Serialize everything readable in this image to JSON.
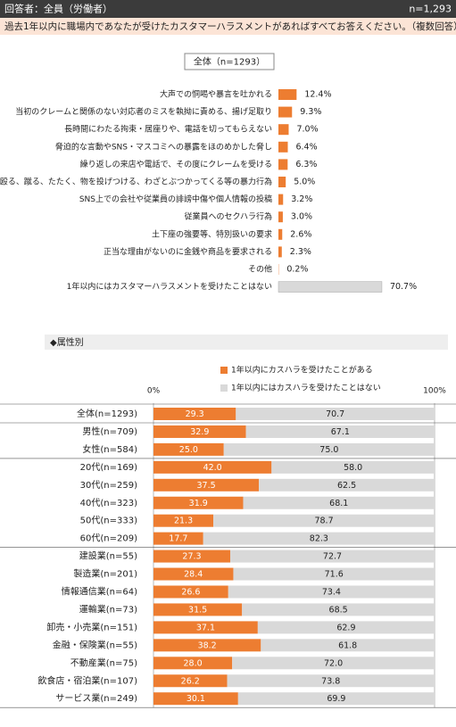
{
  "header": {
    "respondent": "回答者：全員（労働者）",
    "n": "n=1,293"
  },
  "question": "過去1年以内に職場内であなたが受けたカスタマーハラスメントがあればすべてお答えください。（複数回答）",
  "chart_data": [
    {
      "type": "bar",
      "title": "全体（n=1293）",
      "categories": [
        "大声での恫喝や暴言を吐かれる",
        "当初のクレームと関係のない対応者のミスを執拗に責める、揚げ足取り",
        "長時間にわたる拘束・居座りや、電話を切ってもらえない",
        "脅迫的な言動やSNS・マスコミへの暴露をほのめかした脅し",
        "繰り返しの来店や電話で、その度にクレームを受ける",
        "殴る、蹴る、たたく、物を投げつける、わざとぶつかってくる等の暴力行為",
        "SNS上での会社や従業員の誹謗中傷や個人情報の投稿",
        "従業員へのセクハラ行為",
        "土下座の強要等、特別扱いの要求",
        "正当な理由がないのに金銭や商品を要求される",
        "その他",
        "1年以内にはカスタマーハラスメントを受けたことはない"
      ],
      "values": [
        12.4,
        9.3,
        7.0,
        6.4,
        6.3,
        5.0,
        3.2,
        3.0,
        2.6,
        2.3,
        0.2,
        70.7
      ],
      "value_labels": [
        "12.4%",
        "9.3%",
        "7.0%",
        "6.4%",
        "6.3%",
        "5.0%",
        "3.2%",
        "3.0%",
        "2.6%",
        "2.3%",
        "0.2%",
        "70.7%"
      ],
      "colors": [
        "#ED7D31",
        "#ED7D31",
        "#ED7D31",
        "#ED7D31",
        "#ED7D31",
        "#ED7D31",
        "#ED7D31",
        "#ED7D31",
        "#ED7D31",
        "#ED7D31",
        "#ED7D31",
        "#D9D9D9"
      ]
    },
    {
      "type": "stacked_bar",
      "title": "◆属性別",
      "categories": [
        [
          "全体(n=1293)"
        ],
        [
          "男性(n=709)",
          "女性(n=584)"
        ],
        [
          "20代(n=169)",
          "30代(n=259)",
          "40代(n=323)",
          "50代(n=333)",
          "60代(n=209)"
        ],
        [
          "建設業(n=55)",
          "製造業(n=201)",
          "情報通信業(n=64)",
          "運輸業(n=73)",
          "卸売・小売業(n=151)",
          "金融・保険業(n=55)",
          "不動産業(n=75)",
          "飲食店・宿泊業(n=107)",
          "サービス業(n=249)"
        ]
      ],
      "series": [
        {
          "name": "1年以内にカスハラを受けたことがある",
          "color": "#ED7D31",
          "text_color": "#ffffff",
          "values": [
            [
              29.3
            ],
            [
              32.9,
              25.0
            ],
            [
              42.0,
              37.5,
              31.9,
              21.3,
              17.7
            ],
            [
              27.3,
              28.4,
              26.6,
              31.5,
              37.1,
              38.2,
              28.0,
              26.2,
              30.1
            ]
          ],
          "value_labels": [
            [
              "29.3"
            ],
            [
              "32.9",
              "25.0"
            ],
            [
              "42.0",
              "37.5",
              "31.9",
              "21.3",
              "17.7"
            ],
            [
              "27.3",
              "28.4",
              "26.6",
              "31.5",
              "37.1",
              "38.2",
              "28.0",
              "26.2",
              "30.1"
            ]
          ]
        },
        {
          "name": "1年以内にはカスハラを受けたことはない",
          "color": "#D9D9D9",
          "text_color": "#222222",
          "values": [
            [
              70.7
            ],
            [
              67.1,
              75.0
            ],
            [
              58.0,
              62.5,
              68.1,
              78.7,
              82.3
            ],
            [
              72.7,
              71.6,
              73.4,
              68.5,
              62.9,
              61.8,
              72.0,
              73.8,
              69.9
            ]
          ],
          "value_labels": [
            [
              "70.7"
            ],
            [
              "67.1",
              "75.0"
            ],
            [
              "58.0",
              "62.5",
              "68.1",
              "78.7",
              "82.3"
            ],
            [
              "72.7",
              "71.6",
              "73.4",
              "68.5",
              "62.9",
              "61.8",
              "72.0",
              "73.8",
              "69.9"
            ]
          ]
        }
      ],
      "xlim": [
        0,
        100
      ],
      "xticks": [
        {
          "value": 0,
          "label": "0%"
        },
        {
          "value": 100,
          "label": "100%"
        }
      ]
    }
  ]
}
